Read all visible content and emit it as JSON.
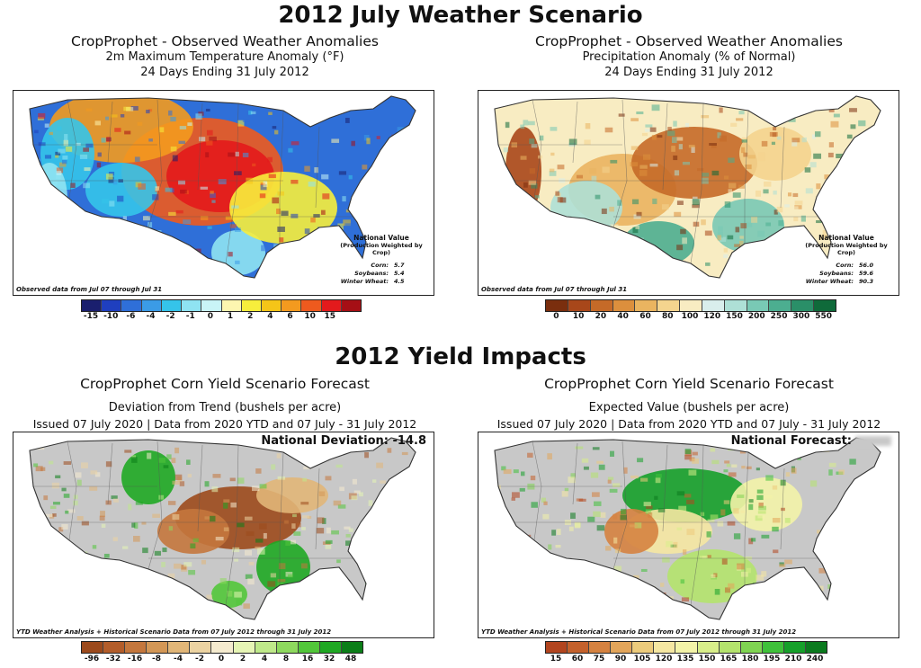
{
  "headings": {
    "weather": "2012 July Weather Scenario",
    "yield": "2012 Yield Impacts"
  },
  "chart_data": [
    {
      "type": "heatmap",
      "title": "CropProphet - Observed Weather Anomalies",
      "subtitle": "2m Maximum Temperature Anomaly (°F)",
      "period": "24 Days Ending 31 July 2012",
      "note": "Observed data from Jul 07 through Jul 31",
      "national_value": {
        "label": "National Value",
        "sublabel": "(Production Weighted by Crop)",
        "rows": [
          {
            "crop": "Corn:",
            "value": "5.7"
          },
          {
            "crop": "Soybeans:",
            "value": "5.4"
          },
          {
            "crop": "Winter Wheat:",
            "value": "4.5"
          }
        ]
      },
      "colorbar": {
        "ticks": [
          "-15",
          "-10",
          "-6",
          "-4",
          "-2",
          "-1",
          "0",
          "1",
          "2",
          "4",
          "6",
          "10",
          "15"
        ],
        "colors": [
          "#1a1f6e",
          "#1f3fbf",
          "#2f6fd8",
          "#3b9be6",
          "#35c4ea",
          "#8fe3f2",
          "#c9f4f7",
          "#fdf6b0",
          "#f7ee3c",
          "#f5c518",
          "#f39a1f",
          "#ee5a1e",
          "#e31a1c",
          "#a50f15"
        ]
      }
    },
    {
      "type": "heatmap",
      "title": "CropProphet - Observed Weather Anomalies",
      "subtitle": "Precipitation Anomaly (% of Normal)",
      "period": "24 Days Ending 31 July 2012",
      "note": "Observed data from Jul 07 through Jul 31",
      "national_value": {
        "label": "National Value",
        "sublabel": "(Production Weighted by Crop)",
        "rows": [
          {
            "crop": "Corn:",
            "value": "56.0"
          },
          {
            "crop": "Soybeans:",
            "value": "59.6"
          },
          {
            "crop": "Winter Wheat:",
            "value": "90.3"
          }
        ]
      },
      "colorbar": {
        "ticks": [
          "0",
          "10",
          "20",
          "40",
          "60",
          "80",
          "100",
          "120",
          "150",
          "200",
          "250",
          "300",
          "550"
        ],
        "colors": [
          "#7a2e0e",
          "#a8471a",
          "#c56a28",
          "#dc8f3d",
          "#eab460",
          "#f4d48e",
          "#f8ecc2",
          "#d9eeec",
          "#aee0d6",
          "#79c9b5",
          "#4cae90",
          "#2a8f68",
          "#0f6a3a"
        ]
      }
    },
    {
      "type": "heatmap",
      "title": "CropProphet Corn Yield Scenario Forecast",
      "subtitle": "Deviation from Trend (bushels per acre)",
      "issued": "Issued 07 July 2020 | Data from 2020 YTD and 07 July - 31 July 2012",
      "national": {
        "label": "National Deviation:",
        "value": "-14.8"
      },
      "note": "YTD Weather Analysis + Historical Scenario Data from 07 July 2012 through 31 July 2012",
      "colorbar": {
        "ticks": [
          "-96",
          "-32",
          "-16",
          "-8",
          "-4",
          "-2",
          "0",
          "2",
          "4",
          "8",
          "16",
          "32",
          "48"
        ],
        "colors": [
          "#9c4a1c",
          "#b35d2a",
          "#c4773d",
          "#d39756",
          "#e1b678",
          "#ecd3a2",
          "#f5ebcf",
          "#e6f5b5",
          "#bfe98a",
          "#8ed95e",
          "#52c63a",
          "#1fa823",
          "#0b7e18"
        ]
      }
    },
    {
      "type": "heatmap",
      "title": "CropProphet Corn Yield Scenario Forecast",
      "subtitle": "Expected Value (bushels per acre)",
      "issued": "Issued 07 July 2020 | Data from 2020 YTD and 07 July - 31 July 2012",
      "national": {
        "label": "National Forecast:",
        "value": ""
      },
      "note": "YTD Weather Analysis + Historical Scenario Data from 07 July 2012 through 31 July 2012",
      "colorbar": {
        "ticks": [
          "15",
          "60",
          "75",
          "90",
          "105",
          "120",
          "135",
          "150",
          "165",
          "180",
          "195",
          "210",
          "240"
        ],
        "colors": [
          "#b2451f",
          "#c4612c",
          "#d58240",
          "#e2a55a",
          "#eccb7c",
          "#f5e7a2",
          "#f3f3a8",
          "#d8ee8a",
          "#b4e36d",
          "#7fd452",
          "#3fc13a",
          "#16a02a",
          "#0b7a1e"
        ]
      }
    }
  ]
}
